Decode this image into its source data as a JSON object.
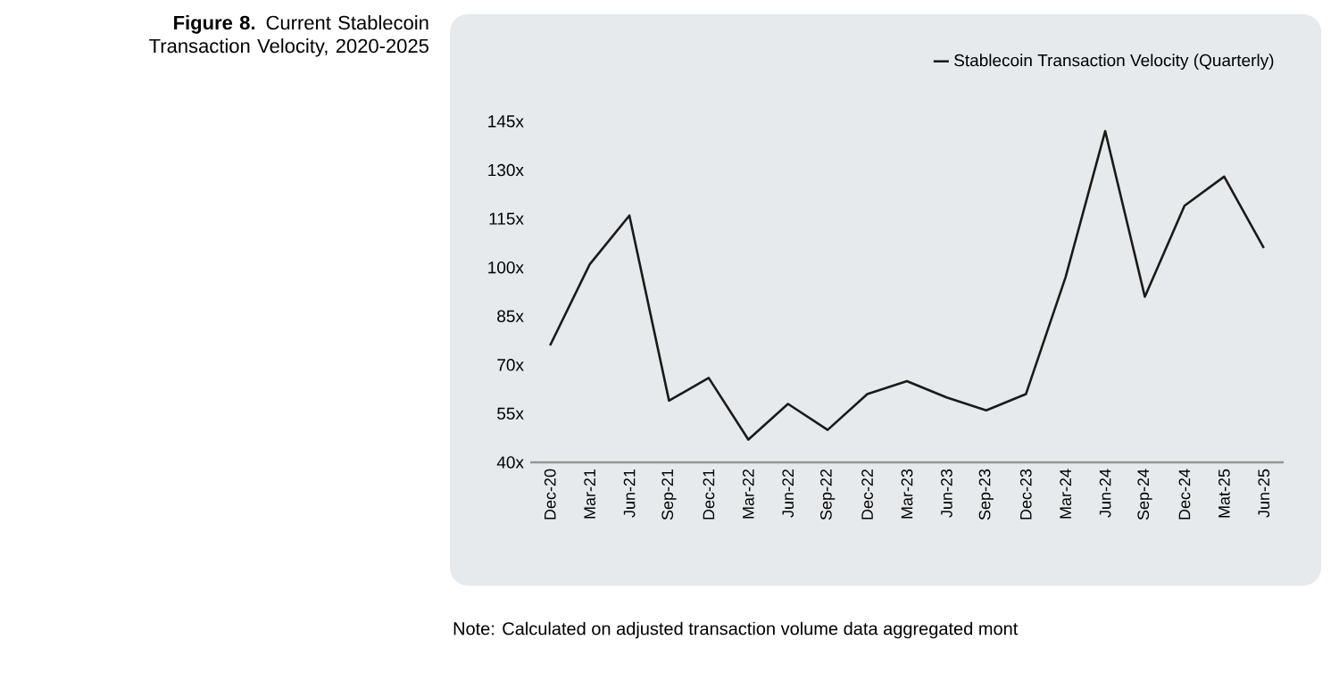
{
  "chart_data": {
    "type": "line",
    "title": "**Figure 8.** Current Stablecoin Transaction Velocity, 2020-2025",
    "categories": [
      "Dec-20",
      "Mar-21",
      "Jun-21",
      "Sep-21",
      "Dec-21",
      "Mar-22",
      "Jun-22",
      "Sep-22",
      "Dec-22",
      "Mar-23",
      "Jun-23",
      "Sep-23",
      "Dec-23",
      "Mar-24",
      "Jun-24",
      "Sep-24",
      "Dec-24",
      "Mat-25",
      "Jun-25"
    ],
    "series": [
      {
        "name": "Stablecoin Transaction Velocity (Quarterly)",
        "color": "#1a1a1a",
        "values": [
          76,
          101,
          116,
          59,
          66,
          47,
          58,
          50,
          61,
          65,
          60,
          56,
          61,
          97,
          142,
          91,
          119,
          128,
          106
        ]
      }
    ],
    "ylim": [
      40,
      145
    ],
    "yticks": [
      {
        "value": 40,
        "label": "40x"
      },
      {
        "value": 55,
        "label": "55x"
      },
      {
        "value": 70,
        "label": "70x"
      },
      {
        "value": 85,
        "label": "85x"
      },
      {
        "value": 100,
        "label": "100x"
      },
      {
        "value": 115,
        "label": "115x"
      },
      {
        "value": 130,
        "label": "130x"
      },
      {
        "value": 145,
        "label": "145x"
      }
    ],
    "grid": false,
    "legend": "top right",
    "marker": "none",
    "line_style": "solid",
    "annotations": [
      "Note: Calculated on adjusted transaction volume data aggregated mont"
    ]
  }
}
